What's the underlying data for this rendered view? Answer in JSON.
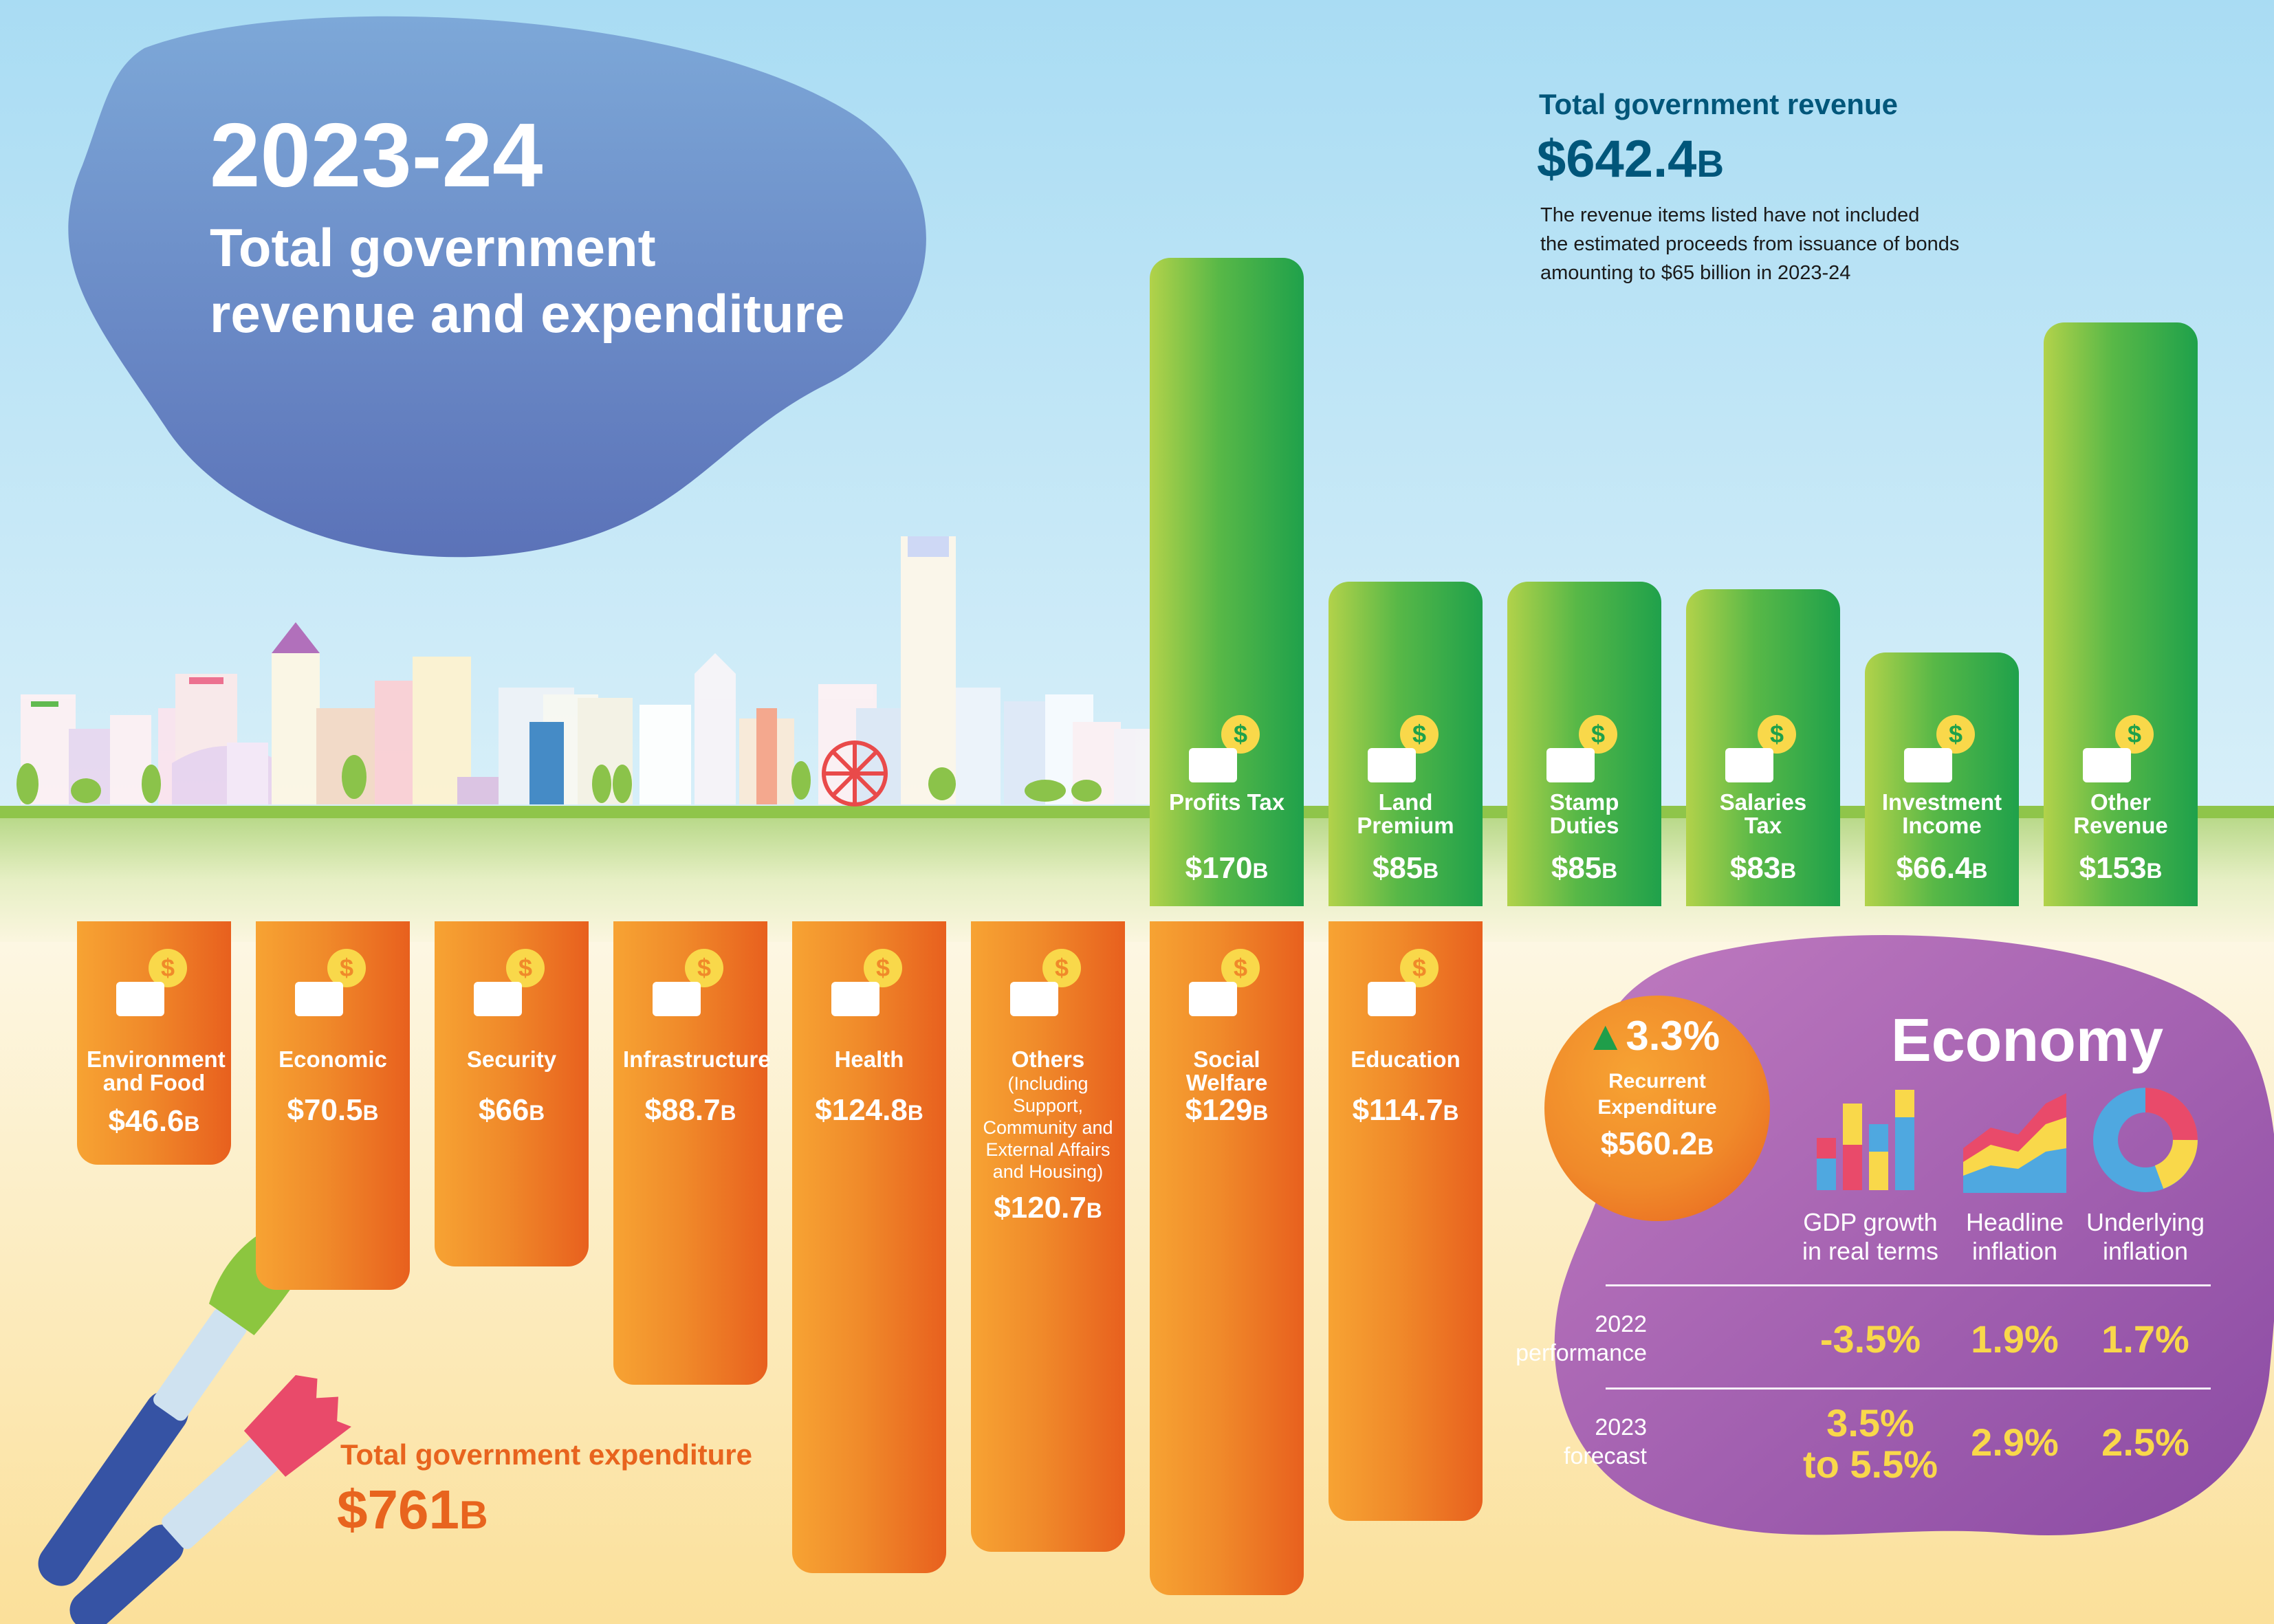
{
  "header": {
    "year": "2023-24",
    "title_line1": "Total government",
    "title_line2": "revenue and expenditure"
  },
  "revenue": {
    "heading": "Total government revenue",
    "total_value": "$642.4",
    "total_unit": "B",
    "note_line1": "The revenue items listed have not included",
    "note_line2": "the estimated proceeds from issuance of bonds",
    "note_line3": "amounting to $65 billion in 2023-24"
  },
  "expenditure": {
    "heading": "Total government expenditure",
    "total_value": "$761",
    "total_unit": "B"
  },
  "recurrent": {
    "pct": "3.3%",
    "label_line1": "Recurrent",
    "label_line2": "Expenditure",
    "value": "$560.2",
    "unit": "B"
  },
  "economy": {
    "title": "Economy",
    "columns": [
      {
        "line1": "GDP growth",
        "line2": "in real terms",
        "icon": "bar-chart-icon"
      },
      {
        "line1": "Headline",
        "line2": "inflation",
        "icon": "area-chart-icon"
      },
      {
        "line1": "Underlying",
        "line2": "inflation",
        "icon": "donut-chart-icon"
      }
    ],
    "rows": [
      {
        "line1": "2022",
        "line2": "performance",
        "values": [
          "-3.5%",
          "1.9%",
          "1.7%"
        ]
      },
      {
        "line1": "2023",
        "line2": "forecast",
        "values": [
          "3.5%\nto 5.5%",
          "2.9%",
          "2.5%"
        ]
      }
    ]
  },
  "chart_data": [
    {
      "type": "bar",
      "title": "Total government revenue",
      "unit": "B",
      "categories": [
        "Profits Tax",
        "Land Premium",
        "Stamp Duties",
        "Salaries Tax",
        "Investment Income",
        "Other Revenue"
      ],
      "values": [
        170,
        85,
        85,
        83,
        66.4,
        153
      ],
      "value_labels": [
        "$170",
        "$85",
        "$85",
        "$83",
        "$66.4",
        "$153"
      ],
      "icons": [
        "profits-tax-icon",
        "land-premium-icon",
        "stamp-duties-icon",
        "salaries-tax-icon",
        "investment-income-icon",
        "other-revenue-icon"
      ],
      "color": "#3cae49"
    },
    {
      "type": "bar",
      "title": "Total government expenditure",
      "unit": "B",
      "categories": [
        "Environment and Food",
        "Economic",
        "Security",
        "Infrastructure",
        "Health",
        "Others",
        "Social Welfare",
        "Education"
      ],
      "sublabel": "(Including Support, Community and External Affairs and Housing)",
      "values": [
        46.6,
        70.5,
        66,
        88.7,
        124.8,
        120.7,
        129,
        114.7
      ],
      "value_labels": [
        "$46.6",
        "$70.5",
        "$66",
        "$88.7",
        "$124.8",
        "$120.7",
        "$129",
        "$114.7"
      ],
      "icons": [
        "environment-food-icon",
        "economic-icon",
        "security-icon",
        "infrastructure-icon",
        "health-icon",
        "others-icon",
        "social-welfare-icon",
        "education-icon"
      ],
      "color": "#f08a2a"
    }
  ],
  "colors": {
    "sky_top": "#8fcfee",
    "revenue_text": "#00567a",
    "expenditure_text": "#e8641e",
    "economy_panel": "#9a4fa8",
    "economy_values": "#f9d84a",
    "green_up": "#1f9e4a"
  }
}
